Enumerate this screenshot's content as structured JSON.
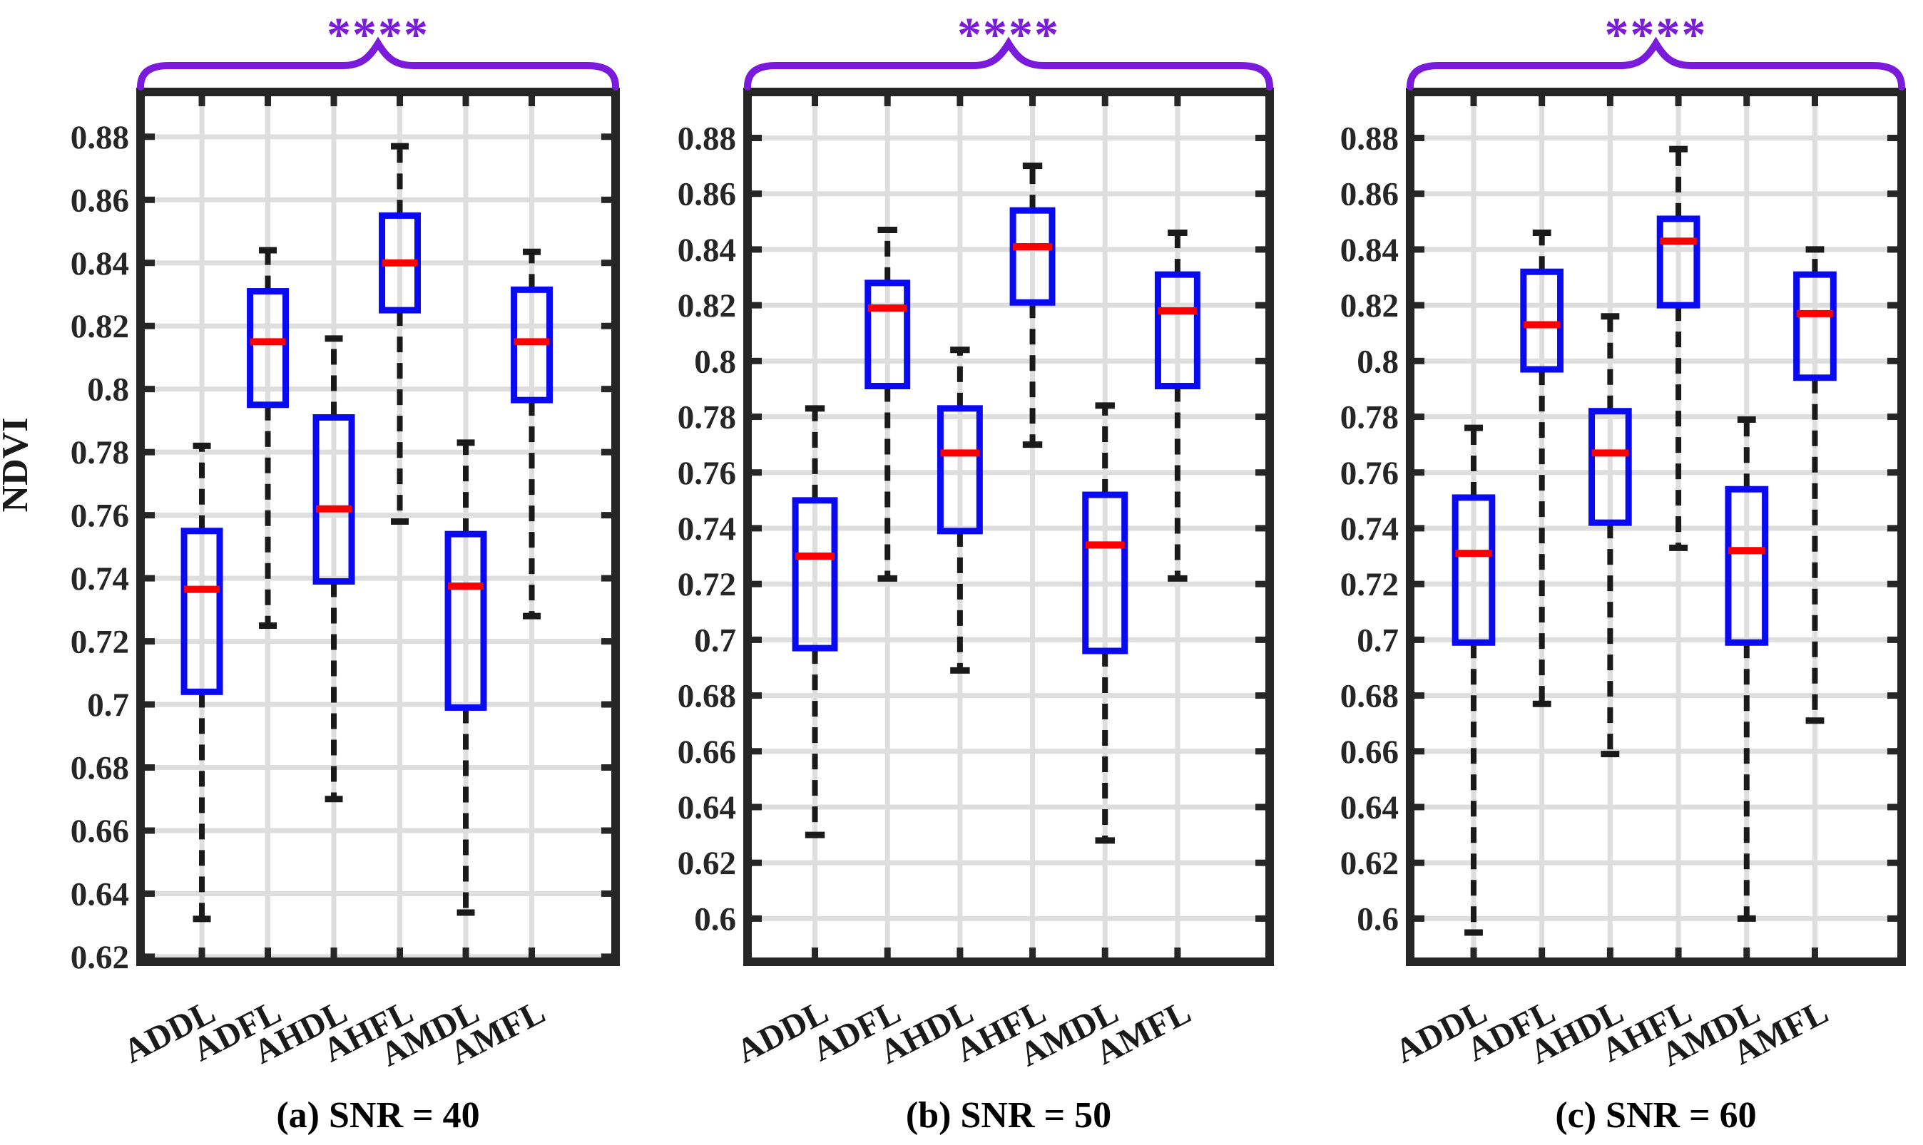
{
  "figure": {
    "ylabel": "NDVI",
    "significance_label": "****",
    "colors": {
      "box": "#0A0AF0",
      "median": "#FA0000",
      "whisker": "#1A1A1A",
      "axis": "#262626",
      "grid": "#DEDEDE",
      "significance": "#7A1BDB",
      "caption": "#000000",
      "background": "#FFFFFF"
    }
  },
  "chart_data": {
    "type": "box",
    "title": "",
    "xlabel": "",
    "ylabel": "NDVI",
    "legend": "none",
    "grid": "on",
    "categories": [
      "ADDL",
      "ADFL",
      "AHDL",
      "AHFL",
      "AMDL",
      "AMFL"
    ],
    "significance_label": "****",
    "panels": [
      {
        "label": "(a) SNR = 40",
        "snr": 40,
        "ylim": [
          0.6184,
          0.8942
        ],
        "yticks": [
          0.62,
          0.64,
          0.66,
          0.68,
          0.7,
          0.72,
          0.74,
          0.76,
          0.78,
          0.8,
          0.82,
          0.84,
          0.86,
          0.88
        ],
        "boxes": [
          {
            "category": "ADDL",
            "whisker_low": 0.632,
            "q1": 0.704,
            "median": 0.7365,
            "q3": 0.755,
            "whisker_high": 0.782
          },
          {
            "category": "ADFL",
            "whisker_low": 0.725,
            "q1": 0.795,
            "median": 0.815,
            "q3": 0.831,
            "whisker_high": 0.844
          },
          {
            "category": "AHDL",
            "whisker_low": 0.67,
            "q1": 0.739,
            "median": 0.762,
            "q3": 0.791,
            "whisker_high": 0.816
          },
          {
            "category": "AHFL",
            "whisker_low": 0.758,
            "q1": 0.825,
            "median": 0.84,
            "q3": 0.855,
            "whisker_high": 0.877
          },
          {
            "category": "AMDL",
            "whisker_low": 0.634,
            "q1": 0.699,
            "median": 0.7375,
            "q3": 0.754,
            "whisker_high": 0.783
          },
          {
            "category": "AMFL",
            "whisker_low": 0.728,
            "q1": 0.7965,
            "median": 0.815,
            "q3": 0.8315,
            "whisker_high": 0.8435
          }
        ]
      },
      {
        "label": "(b) SNR = 50",
        "snr": 50,
        "ylim": [
          0.5845,
          0.8965
        ],
        "yticks": [
          0.6,
          0.62,
          0.64,
          0.66,
          0.68,
          0.7,
          0.72,
          0.74,
          0.76,
          0.78,
          0.8,
          0.82,
          0.84,
          0.86,
          0.88
        ],
        "boxes": [
          {
            "category": "ADDL",
            "whisker_low": 0.63,
            "q1": 0.697,
            "median": 0.73,
            "q3": 0.75,
            "whisker_high": 0.783
          },
          {
            "category": "ADFL",
            "whisker_low": 0.722,
            "q1": 0.791,
            "median": 0.819,
            "q3": 0.828,
            "whisker_high": 0.847
          },
          {
            "category": "AHDL",
            "whisker_low": 0.689,
            "q1": 0.739,
            "median": 0.767,
            "q3": 0.783,
            "whisker_high": 0.804
          },
          {
            "category": "AHFL",
            "whisker_low": 0.77,
            "q1": 0.821,
            "median": 0.841,
            "q3": 0.854,
            "whisker_high": 0.87
          },
          {
            "category": "AMDL",
            "whisker_low": 0.628,
            "q1": 0.696,
            "median": 0.734,
            "q3": 0.752,
            "whisker_high": 0.784
          },
          {
            "category": "AMFL",
            "whisker_low": 0.722,
            "q1": 0.791,
            "median": 0.818,
            "q3": 0.831,
            "whisker_high": 0.846
          }
        ]
      },
      {
        "label": "(c) SNR = 60",
        "snr": 60,
        "ylim": [
          0.5845,
          0.8965
        ],
        "yticks": [
          0.6,
          0.62,
          0.64,
          0.66,
          0.68,
          0.7,
          0.72,
          0.74,
          0.76,
          0.78,
          0.8,
          0.82,
          0.84,
          0.86,
          0.88
        ],
        "boxes": [
          {
            "category": "ADDL",
            "whisker_low": 0.595,
            "q1": 0.699,
            "median": 0.731,
            "q3": 0.751,
            "whisker_high": 0.776
          },
          {
            "category": "ADFL",
            "whisker_low": 0.677,
            "q1": 0.797,
            "median": 0.813,
            "q3": 0.832,
            "whisker_high": 0.846
          },
          {
            "category": "AHDL",
            "whisker_low": 0.659,
            "q1": 0.742,
            "median": 0.767,
            "q3": 0.782,
            "whisker_high": 0.816
          },
          {
            "category": "AHFL",
            "whisker_low": 0.733,
            "q1": 0.82,
            "median": 0.843,
            "q3": 0.851,
            "whisker_high": 0.876
          },
          {
            "category": "AMDL",
            "whisker_low": 0.6,
            "q1": 0.699,
            "median": 0.732,
            "q3": 0.754,
            "whisker_high": 0.779
          },
          {
            "category": "AMFL",
            "whisker_low": 0.671,
            "q1": 0.794,
            "median": 0.817,
            "q3": 0.831,
            "whisker_high": 0.84
          }
        ]
      }
    ]
  }
}
